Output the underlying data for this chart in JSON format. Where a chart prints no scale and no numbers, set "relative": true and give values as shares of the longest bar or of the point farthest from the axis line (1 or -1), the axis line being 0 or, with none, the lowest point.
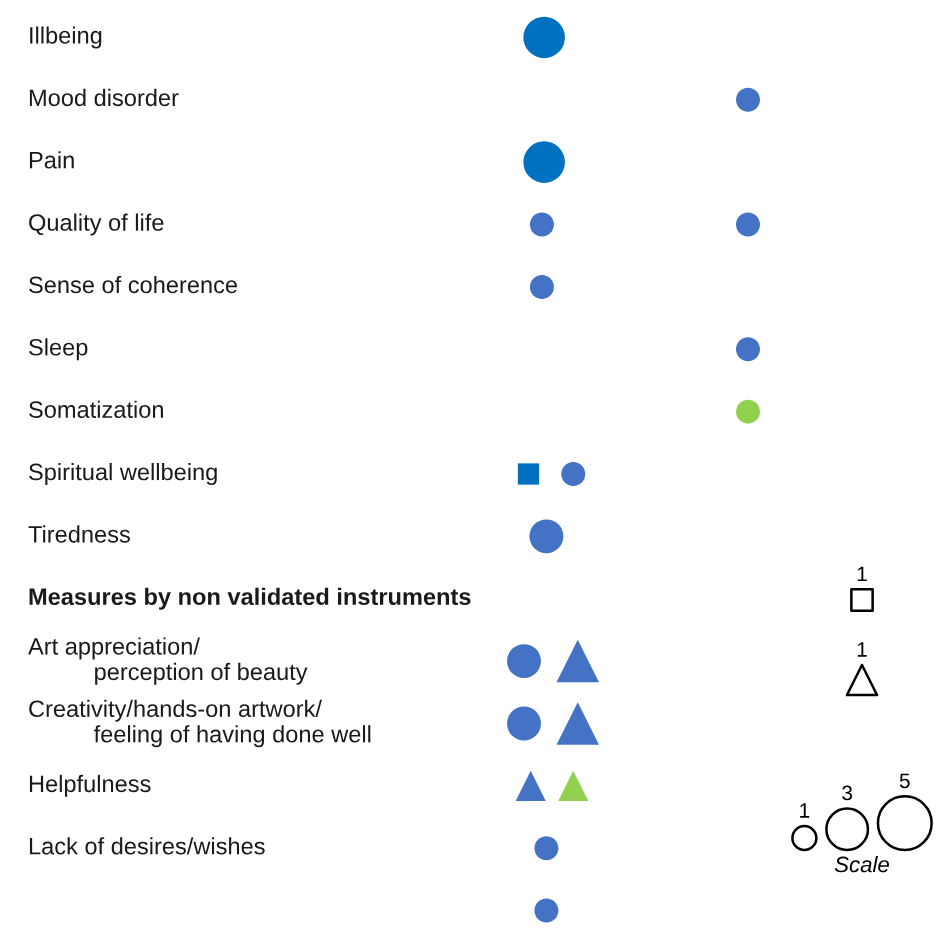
{
  "chart_data": {
    "type": "bubble",
    "orientation": "horizontal",
    "relative": true,
    "tick_labels": "y",
    "legend_title": "Scale",
    "size_legend": [
      1,
      3,
      5
    ],
    "annotations": [
      "1",
      "1"
    ],
    "categories": [
      "Illbeing",
      "Mood disorder",
      "Pain",
      "Quality of life",
      "Sense of coherence",
      "Sleep",
      "Somatization",
      "Spiritual wellbeing",
      "Tiredness",
      "Measures by non validated instruments",
      "Art appreciation/\nperception of beauty",
      "Creativity/hands-on artwork/\nfeeling of having done well",
      "Helpfulness",
      "Lack of desires/wishes",
      null
    ],
    "series": [
      {
        "color": "#0070c0",
        "marker": "circle",
        "values": [
          0.09,
          null,
          0.09,
          null,
          null,
          null,
          null,
          null,
          null,
          null,
          null,
          null,
          null,
          null,
          null
        ],
        "sizes": [
          3,
          null,
          3,
          null,
          null,
          null,
          null,
          null,
          null,
          null,
          null,
          null,
          null,
          null,
          null
        ]
      },
      {
        "color": "#4472c4",
        "marker": "circle",
        "values": [
          null,
          null,
          null,
          0.08,
          0.08,
          null,
          null,
          0.22,
          0.1,
          null,
          0,
          0,
          null,
          0.1,
          0.1
        ],
        "sizes": [
          null,
          null,
          null,
          1,
          1,
          null,
          null,
          1,
          2,
          null,
          2,
          2,
          null,
          1,
          1
        ]
      },
      {
        "color": "#4472c4",
        "marker": "circle",
        "values": [
          null,
          1,
          null,
          1,
          null,
          1,
          null,
          null,
          null,
          null,
          null,
          null,
          null,
          null,
          null
        ],
        "sizes": [
          null,
          1,
          null,
          1,
          null,
          1,
          null,
          null,
          null,
          null,
          null,
          null,
          null,
          null,
          null
        ]
      },
      {
        "color": "#92d050",
        "marker": "circle",
        "values": [
          null,
          null,
          null,
          null,
          null,
          null,
          1,
          null,
          null,
          null,
          null,
          null,
          null,
          null,
          null
        ],
        "sizes": [
          null,
          null,
          null,
          null,
          null,
          null,
          1,
          null,
          null,
          null,
          null,
          null,
          null,
          null,
          null
        ]
      },
      {
        "color": "#0070c0",
        "marker": "square",
        "values": [
          null,
          null,
          null,
          null,
          null,
          null,
          null,
          0.02,
          null,
          null,
          null,
          null,
          null,
          null,
          null
        ],
        "sizes": [
          null,
          null,
          null,
          null,
          null,
          null,
          null,
          1,
          null,
          null,
          null,
          null,
          null,
          null,
          null
        ]
      },
      {
        "color": "#4472c4",
        "marker": "triangle",
        "values": [
          null,
          null,
          null,
          null,
          null,
          null,
          null,
          null,
          null,
          null,
          0.24,
          0.24,
          0.03,
          null,
          null
        ],
        "sizes": [
          null,
          null,
          null,
          null,
          null,
          null,
          null,
          null,
          null,
          null,
          2,
          2,
          1,
          null,
          null
        ]
      },
      {
        "color": "#92d050",
        "marker": "triangle",
        "values": [
          null,
          null,
          null,
          null,
          null,
          null,
          null,
          null,
          null,
          null,
          null,
          null,
          0.22,
          null,
          null
        ],
        "sizes": [
          null,
          null,
          null,
          null,
          null,
          null,
          null,
          null,
          null,
          null,
          null,
          null,
          1,
          null,
          null
        ]
      }
    ]
  }
}
